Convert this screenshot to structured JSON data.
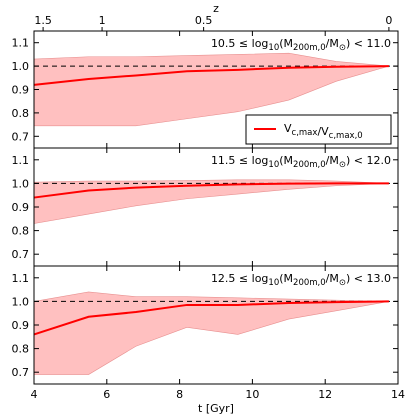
{
  "chart_data": {
    "type": "line",
    "xlabel": "t [Gyr]",
    "xlim": [
      4,
      14
    ],
    "x_ticks": [
      "4",
      "6",
      "8",
      "10",
      "12",
      "14"
    ],
    "top_axis": {
      "label": "z",
      "ticks": [
        {
          "label": "1.5",
          "t": 4.25
        },
        {
          "label": "1",
          "t": 5.87
        },
        {
          "label": "0.5",
          "t": 8.66
        },
        {
          "label": "0",
          "t": 13.75
        }
      ]
    },
    "ylim": [
      0.65,
      1.15
    ],
    "y_ticks": [
      "0.7",
      "0.8",
      "0.9",
      "1.0",
      "1.1"
    ],
    "reference_line": 1.0,
    "line_color": "#ff0000",
    "band_color": "#ffc0c0",
    "legend": {
      "label": "V_{c,max}/V_{c,max,0}",
      "location": "right"
    },
    "panels": [
      {
        "label_lo": "10.5",
        "label_hi": "11.0",
        "series": {
          "name": "V_{c,max}/V_{c,max,0}",
          "x": [
            4.0,
            5.5,
            6.8,
            8.2,
            9.6,
            11.0,
            12.3,
            13.75
          ],
          "y": [
            0.92,
            0.945,
            0.96,
            0.978,
            0.984,
            0.993,
            0.997,
            1.0
          ],
          "lower": [
            0.745,
            0.745,
            0.745,
            0.775,
            0.805,
            0.855,
            0.935,
            1.0
          ],
          "upper": [
            1.03,
            1.04,
            1.04,
            1.045,
            1.05,
            1.055,
            1.02,
            1.0
          ]
        }
      },
      {
        "label_lo": "11.5",
        "label_hi": "12.0",
        "series": {
          "name": "V_{c,max}/V_{c,max,0}",
          "x": [
            4.0,
            5.5,
            6.8,
            8.2,
            9.6,
            11.0,
            12.3,
            13.75
          ],
          "y": [
            0.94,
            0.97,
            0.982,
            0.99,
            0.996,
            0.999,
            1.0,
            1.0
          ],
          "lower": [
            0.83,
            0.87,
            0.905,
            0.935,
            0.955,
            0.975,
            0.99,
            1.0
          ],
          "upper": [
            1.005,
            1.01,
            1.01,
            1.012,
            1.015,
            1.015,
            1.01,
            1.0
          ]
        }
      },
      {
        "label_lo": "12.5",
        "label_hi": "13.0",
        "series": {
          "name": "V_{c,max}/V_{c,max,0}",
          "x": [
            4.0,
            5.5,
            6.8,
            8.2,
            9.6,
            11.0,
            12.3,
            13.75
          ],
          "y": [
            0.86,
            0.935,
            0.955,
            0.985,
            0.985,
            0.993,
            0.997,
            1.0
          ],
          "lower": [
            0.69,
            0.69,
            0.81,
            0.89,
            0.86,
            0.925,
            0.96,
            1.0
          ],
          "upper": [
            1.0,
            1.04,
            1.02,
            1.02,
            1.015,
            1.01,
            1.005,
            1.0
          ]
        }
      }
    ]
  }
}
